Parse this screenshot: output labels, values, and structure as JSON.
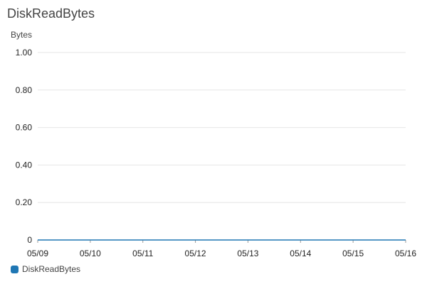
{
  "chart_data": {
    "type": "line",
    "title": "DiskReadBytes",
    "xlabel": "",
    "ylabel": "Bytes",
    "x_ticks": [
      "05/09",
      "05/10",
      "05/11",
      "05/12",
      "05/13",
      "05/14",
      "05/15",
      "05/16"
    ],
    "y_ticks": [
      "0",
      "0.20",
      "0.40",
      "0.60",
      "0.80",
      "1.00"
    ],
    "ylim": [
      0,
      1
    ],
    "grid": true,
    "legend_position": "bottom-left",
    "series": [
      {
        "name": "DiskReadBytes",
        "color": "#1f77b4",
        "x": [
          "05/09",
          "05/16"
        ],
        "values": [
          0,
          0
        ]
      }
    ]
  }
}
